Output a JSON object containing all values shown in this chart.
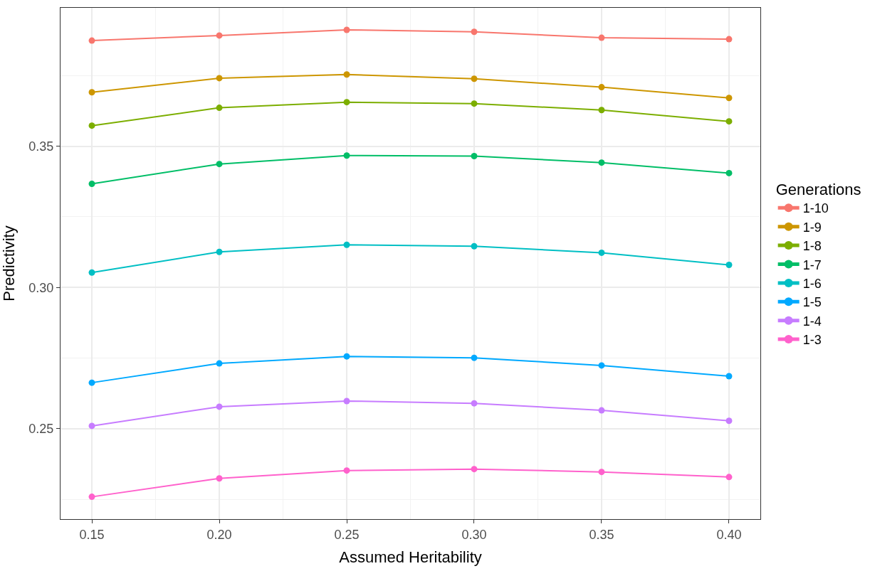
{
  "chart_data": {
    "type": "line",
    "xlabel": "Assumed Heritability",
    "ylabel": "Predictivity",
    "legend_title": "Generations",
    "legend": "right",
    "grid": true,
    "marker": "circle",
    "line_style": "solid",
    "x": [
      0.15,
      0.2,
      0.25,
      0.3,
      0.35,
      0.4
    ],
    "xlim": [
      0.1377,
      0.4123
    ],
    "xticks": [
      {
        "value": 0.15,
        "label": "0.15"
      },
      {
        "value": 0.2,
        "label": "0.20"
      },
      {
        "value": 0.25,
        "label": "0.25"
      },
      {
        "value": 0.3,
        "label": "0.30"
      },
      {
        "value": 0.35,
        "label": "0.35"
      },
      {
        "value": 0.4,
        "label": "0.40"
      }
    ],
    "ylim": [
      0.218,
      0.399
    ],
    "yticks": [
      {
        "value": 0.25,
        "label": "0.25"
      },
      {
        "value": 0.3,
        "label": "0.30"
      },
      {
        "value": 0.35,
        "label": "0.35"
      }
    ],
    "series": [
      {
        "name": "1-10",
        "color": "#f8766d",
        "values": [
          0.3874,
          0.3892,
          0.3912,
          0.3905,
          0.3884,
          0.3879
        ]
      },
      {
        "name": "1-9",
        "color": "#cd9600",
        "values": [
          0.3691,
          0.3741,
          0.3754,
          0.3739,
          0.3709,
          0.3671
        ]
      },
      {
        "name": "1-8",
        "color": "#7cae00",
        "values": [
          0.3573,
          0.3636,
          0.3656,
          0.3651,
          0.3628,
          0.3588
        ]
      },
      {
        "name": "1-7",
        "color": "#00be67",
        "values": [
          0.3367,
          0.3437,
          0.3467,
          0.3465,
          0.3442,
          0.3405
        ]
      },
      {
        "name": "1-6",
        "color": "#00bfc4",
        "values": [
          0.3053,
          0.3126,
          0.3151,
          0.3146,
          0.3123,
          0.308
        ]
      },
      {
        "name": "1-5",
        "color": "#00a9ff",
        "values": [
          0.2663,
          0.2731,
          0.2756,
          0.2751,
          0.2724,
          0.2686
        ]
      },
      {
        "name": "1-4",
        "color": "#c77cff",
        "values": [
          0.251,
          0.2578,
          0.2598,
          0.259,
          0.2565,
          0.2528
        ]
      },
      {
        "name": "1-3",
        "color": "#ff61cc",
        "values": [
          0.2259,
          0.2324,
          0.2352,
          0.2357,
          0.2347,
          0.2329
        ]
      }
    ]
  }
}
